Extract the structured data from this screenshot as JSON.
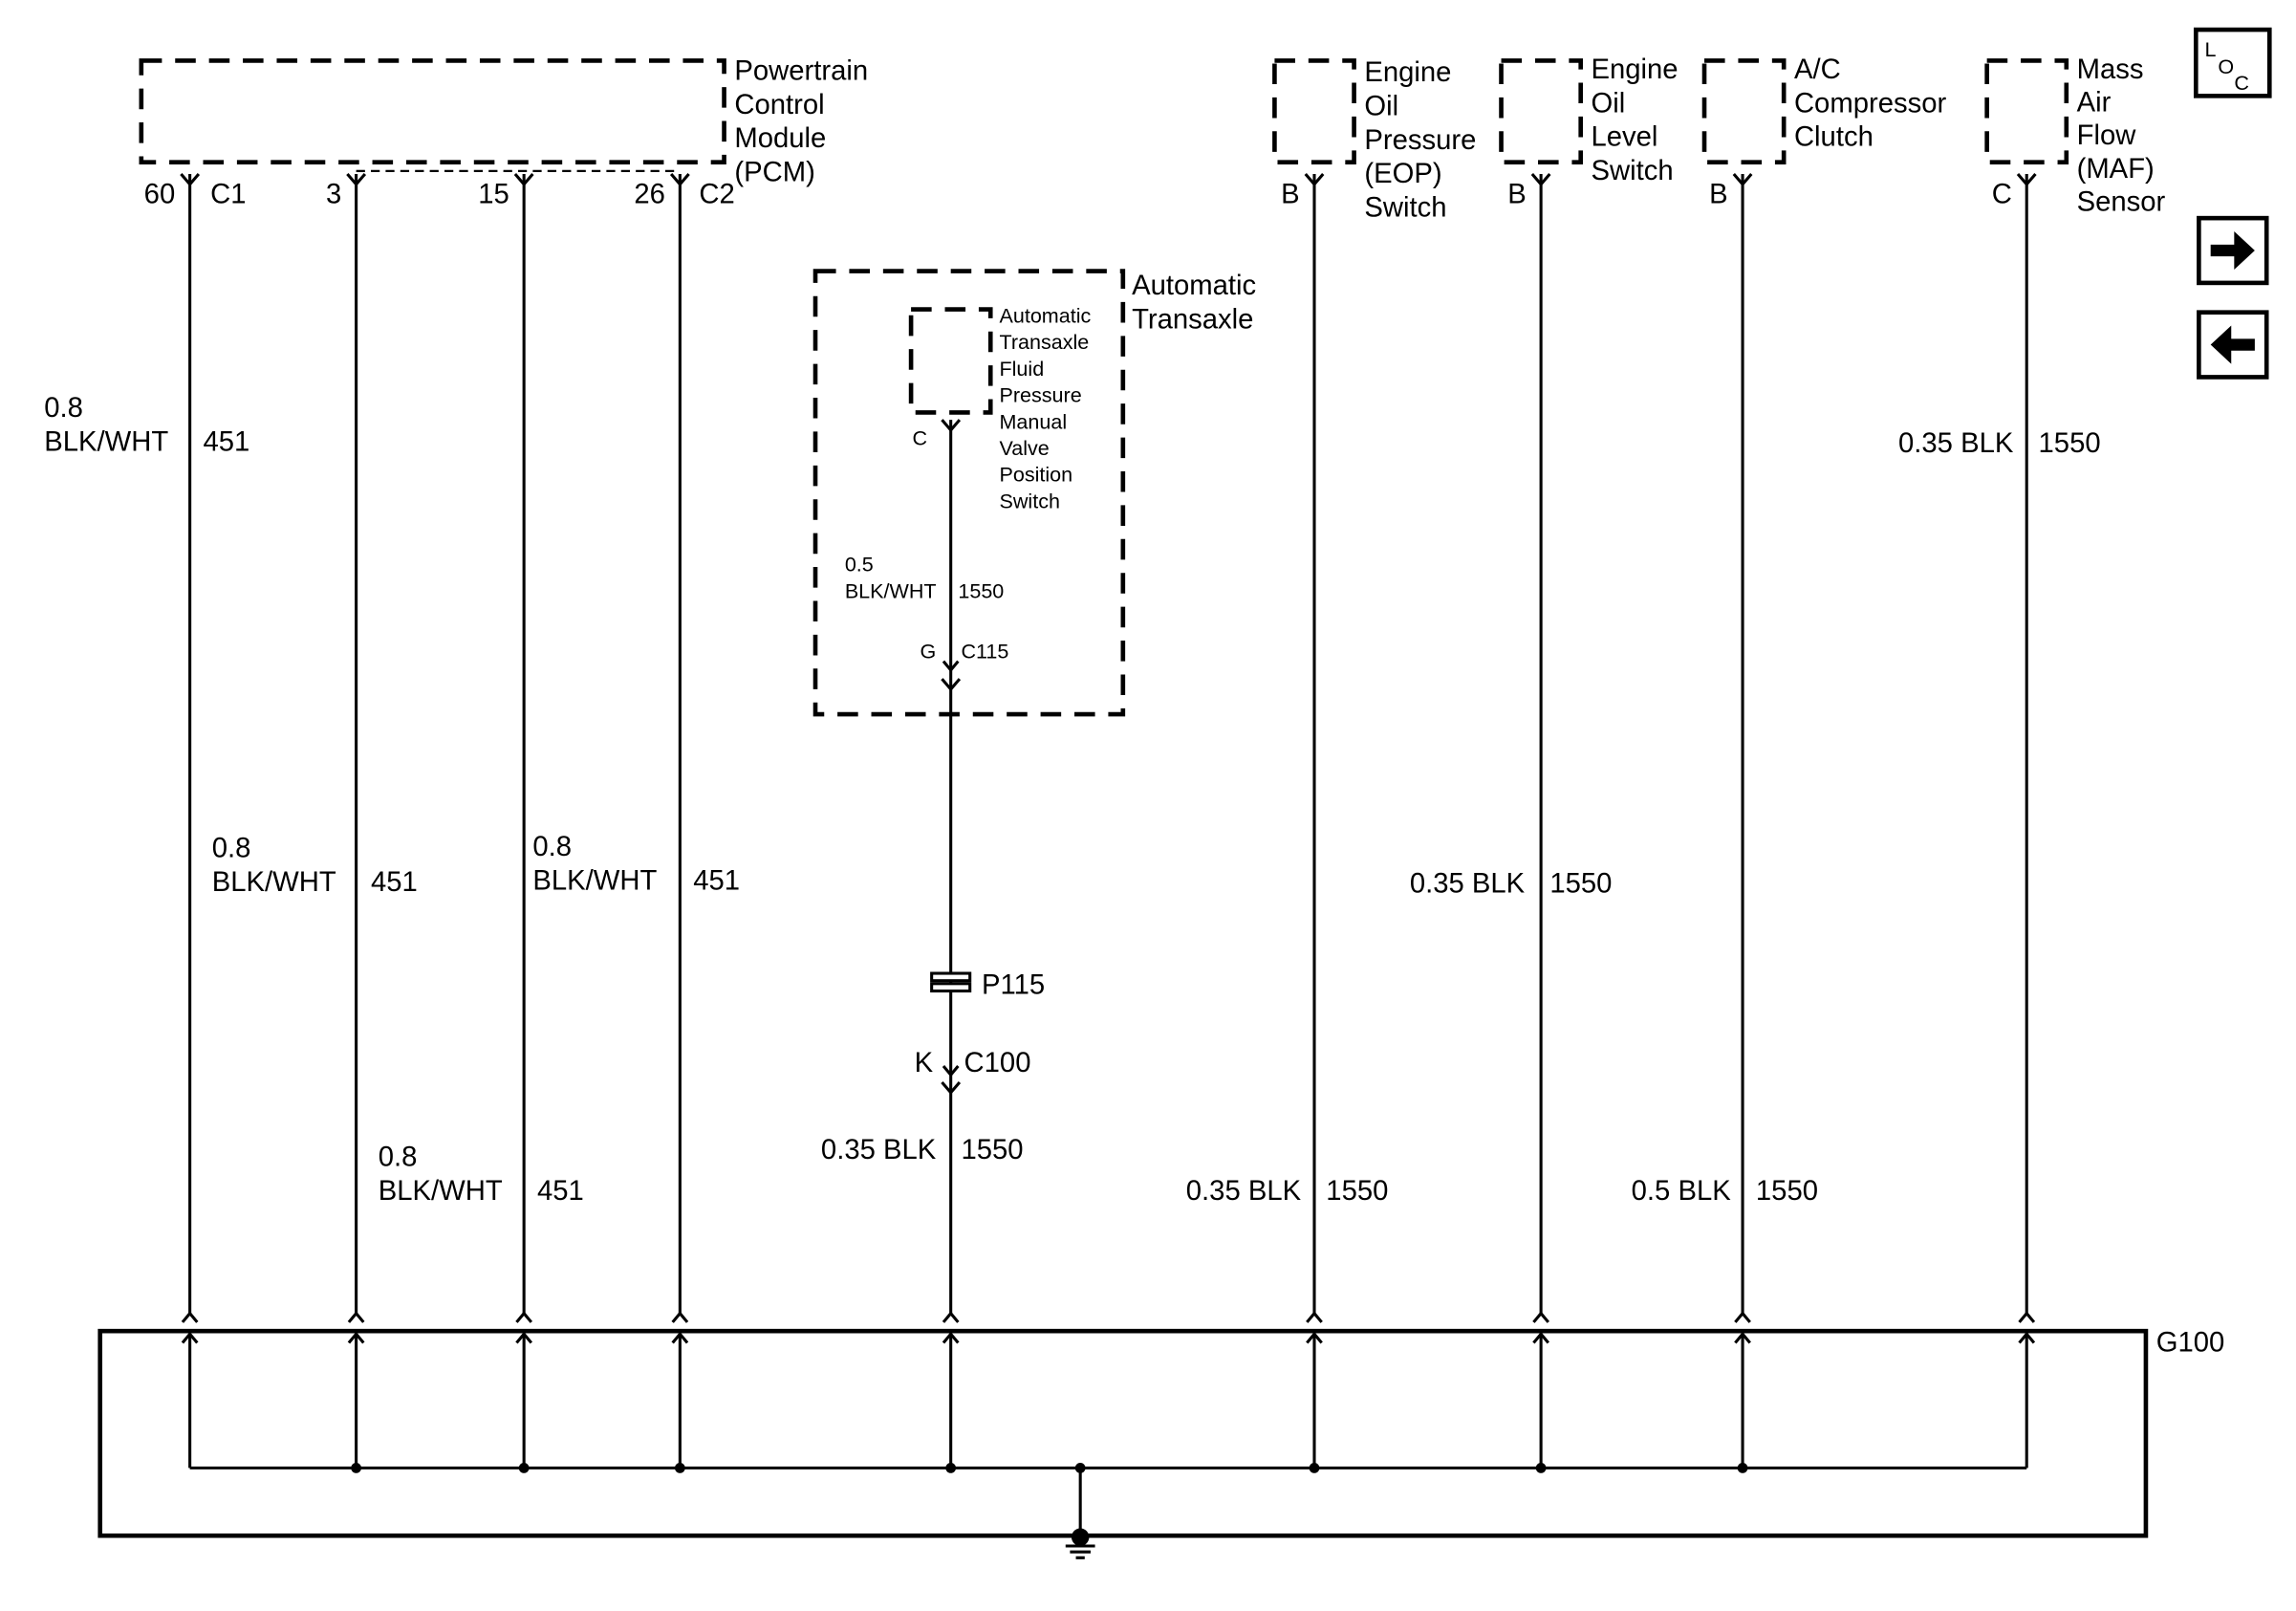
{
  "components": {
    "pcm": {
      "lines": [
        "Powertrain",
        "Control",
        "Module",
        "(PCM)"
      ],
      "connector_left": "C1",
      "connector_right": "C2"
    },
    "eop": {
      "lines": [
        "Engine",
        "Oil",
        "Pressure",
        "(EOP)",
        "Switch"
      ]
    },
    "eol": {
      "lines": [
        "Engine",
        "Oil",
        "Level",
        "Switch"
      ]
    },
    "ac": {
      "lines": [
        "A/C",
        "Compressor",
        "Clutch"
      ]
    },
    "maf": {
      "lines": [
        "Mass",
        "Air",
        "Flow",
        "(MAF)",
        "Sensor"
      ]
    },
    "transaxle": {
      "lines": [
        "Automatic",
        "Transaxle"
      ]
    },
    "fluid_switch": {
      "lines": [
        "Automatic",
        "Transaxle",
        "Fluid",
        "Pressure",
        "Manual",
        "Valve",
        "Position",
        "Switch"
      ]
    }
  },
  "wires": [
    {
      "pin": "60",
      "size": "0.8",
      "color": "BLK/WHT",
      "circuit": "451"
    },
    {
      "pin": "3",
      "size": "0.8",
      "color": "BLK/WHT",
      "circuit": "451"
    },
    {
      "pin": "15",
      "size": "0.8",
      "color": "BLK/WHT",
      "circuit": "451"
    },
    {
      "pin": "26",
      "size": "0.8",
      "color": "BLK/WHT",
      "circuit": "451"
    },
    {
      "pin": "C",
      "size": "0.35",
      "color": "BLK",
      "circuit": "1550"
    },
    {
      "pin": "B",
      "size": "0.35",
      "color": "BLK",
      "circuit": "1550"
    },
    {
      "pin": "B",
      "size": "0.35",
      "color": "BLK",
      "circuit": "1550"
    },
    {
      "pin": "B",
      "size": "0.5",
      "color": "BLK",
      "circuit": "1550"
    },
    {
      "pin": "C",
      "size": "0.35",
      "color": "BLK",
      "circuit": "1550"
    }
  ],
  "transaxle_wire": {
    "size": "0.5",
    "color": "BLK/WHT",
    "circuit": "1550",
    "pin": "G",
    "connector": "C115"
  },
  "inline": {
    "splice_pack": "P115",
    "pin": "K",
    "connector": "C100"
  },
  "ground": {
    "label": "G100"
  },
  "nav": {
    "loc_icon": "L O C",
    "loc_letters": [
      "L",
      "O",
      "C"
    ],
    "next": "arrow-right",
    "prev": "arrow-left"
  }
}
